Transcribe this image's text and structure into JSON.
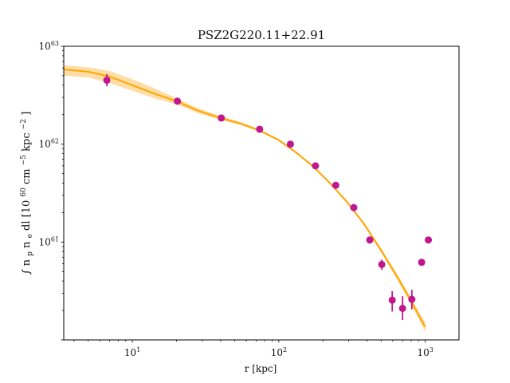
{
  "chart_data": {
    "type": "scatter",
    "title": "PSZ2G220.11+22.91",
    "xlabel": "r [kpc]",
    "ylabel_parts": [
      "∫",
      "n",
      "p",
      "n",
      "e",
      "dl [10",
      "60",
      "cm",
      "−5",
      "kpc",
      "−2",
      "]"
    ],
    "x_scale": "log",
    "y_scale": "log",
    "xlim": [
      3.4,
      1700
    ],
    "ylim": [
      1e+60,
      1e+63
    ],
    "x_ticks": [
      {
        "value": 10,
        "label_base": "10",
        "label_exp": "1"
      },
      {
        "value": 100,
        "label_base": "10",
        "label_exp": "2"
      },
      {
        "value": 1000,
        "label_base": "10",
        "label_exp": "3"
      }
    ],
    "y_ticks": [
      {
        "value": 1e+61,
        "label_base": "10",
        "label_exp": "61"
      },
      {
        "value": 1e+62,
        "label_base": "10",
        "label_exp": "62"
      },
      {
        "value": 1e+63,
        "label_base": "10",
        "label_exp": "63"
      }
    ],
    "grid": false,
    "colors": {
      "points": "#c0178e",
      "model_line": "#ffa500",
      "model_band": "#ffd28a"
    },
    "series": [
      {
        "kind": "points",
        "points": [
          {
            "x": 6.7,
            "y": 4.5e+62,
            "err_lo": 3.9e+62,
            "err_hi": 5.2e+62
          },
          {
            "x": 20.3,
            "y": 2.75e+62,
            "err_lo": 2.6e+62,
            "err_hi": 2.95e+62
          },
          {
            "x": 40.5,
            "y": 1.85e+62,
            "err_lo": 1.78e+62,
            "err_hi": 1.93e+62
          },
          {
            "x": 74,
            "y": 1.42e+62,
            "err_lo": 1.37e+62,
            "err_hi": 1.47e+62
          },
          {
            "x": 120,
            "y": 1e+62,
            "err_lo": 9.7e+61,
            "err_hi": 1.03e+62
          },
          {
            "x": 178,
            "y": 6e+61,
            "err_lo": 5.8e+61,
            "err_hi": 6.2e+61
          },
          {
            "x": 245,
            "y": 3.8e+61,
            "err_lo": 3.65e+61,
            "err_hi": 3.95e+61
          },
          {
            "x": 325,
            "y": 2.25e+61,
            "err_lo": 2.13e+61,
            "err_hi": 2.37e+61
          },
          {
            "x": 418,
            "y": 1.05e+61,
            "err_lo": 9.6e+60,
            "err_hi": 1.14e+61
          },
          {
            "x": 505,
            "y": 5.9e+60,
            "err_lo": 5.2e+60,
            "err_hi": 6.6e+60
          },
          {
            "x": 595,
            "y": 2.55e+60,
            "err_lo": 1.95e+60,
            "err_hi": 3.15e+60
          },
          {
            "x": 700,
            "y": 2.1e+60,
            "err_lo": 1.6e+60,
            "err_hi": 2.8e+60
          },
          {
            "x": 810,
            "y": 2.6e+60,
            "err_lo": 2.05e+60,
            "err_hi": 3.25e+60
          },
          {
            "x": 945,
            "y": 6.2e+60,
            "err_lo": 5.8e+60,
            "err_hi": 6.6e+60
          },
          {
            "x": 1050,
            "y": 1.05e+61,
            "err_lo": 1e+61,
            "err_hi": 1.1e+61
          }
        ]
      },
      {
        "kind": "model_curve",
        "x": [
          3.4,
          5,
          7,
          10,
          14,
          20,
          28,
          40,
          55,
          74,
          100,
          130,
          170,
          220,
          290,
          380,
          500,
          650,
          800,
          1000
        ],
        "y": [
          5.8e+62,
          5.5e+62,
          4.9e+62,
          4e+62,
          3.3e+62,
          2.75e+62,
          2.2e+62,
          1.85e+62,
          1.62e+62,
          1.38e+62,
          1.1e+62,
          8.3e+61,
          6e+61,
          4.1e+61,
          2.6e+61,
          1.55e+61,
          8.2e+60,
          4.3e+60,
          2.5e+60,
          1.35e+60
        ],
        "band_lo": [
          5e+62,
          4.8e+62,
          4.2e+62,
          3.5e+62,
          2.95e+62,
          2.55e+62,
          2.07e+62,
          1.76e+62,
          1.56e+62,
          1.34e+62,
          1.07e+62,
          8.1e+61,
          5.85e+61,
          4e+61,
          2.53e+61,
          1.5e+61,
          7.8e+60,
          4e+60,
          2.3e+60,
          1.2e+60
        ],
        "band_hi": [
          6.4e+62,
          6.1e+62,
          5.6e+62,
          4.6e+62,
          3.75e+62,
          2.95e+62,
          2.33e+62,
          1.94e+62,
          1.68e+62,
          1.42e+62,
          1.13e+62,
          8.5e+61,
          6.15e+61,
          4.2e+61,
          2.67e+61,
          1.6e+61,
          8.6e+60,
          4.6e+60,
          2.7e+60,
          1.5e+60
        ]
      }
    ]
  }
}
